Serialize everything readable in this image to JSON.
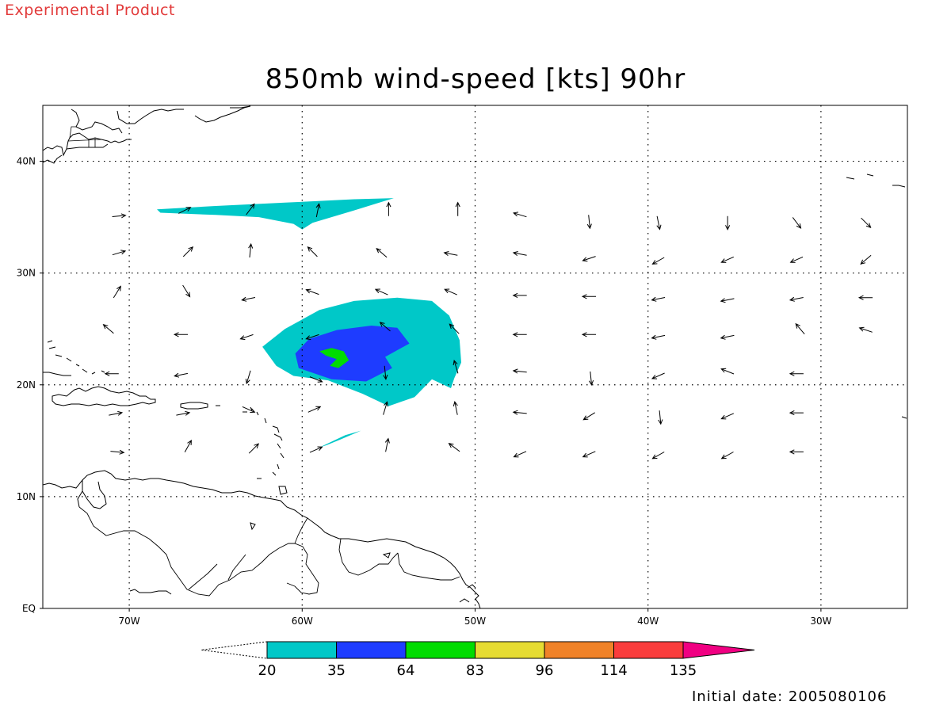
{
  "watermark": "Experimental Product",
  "initial_date": "Initial date: 2005080106",
  "chart_data": {
    "type": "map-contour",
    "title": "850mb wind-speed [kts] 90hr",
    "xlim": [
      -75,
      -25
    ],
    "ylim": [
      0,
      45
    ],
    "x_ticks": [
      {
        "value": -70,
        "label": "70W"
      },
      {
        "value": -60,
        "label": "60W"
      },
      {
        "value": -50,
        "label": "50W"
      },
      {
        "value": -40,
        "label": "40W"
      },
      {
        "value": -30,
        "label": "30W"
      }
    ],
    "y_ticks": [
      {
        "value": 0,
        "label": "EQ"
      },
      {
        "value": 10,
        "label": "10N"
      },
      {
        "value": 20,
        "label": "20N"
      },
      {
        "value": 30,
        "label": "30N"
      },
      {
        "value": 40,
        "label": "40N"
      }
    ],
    "grid": true,
    "colorbar": {
      "levels": [
        "20",
        "35",
        "64",
        "83",
        "96",
        "114",
        "135"
      ],
      "colors": [
        "#00c8c8",
        "#1e3cff",
        "#00dc00",
        "#e6dc32",
        "#f08228",
        "#fa3c3c",
        "#f00082"
      ]
    },
    "wind_vectors": [
      {
        "lon": -70.6,
        "lat": 35.1,
        "u": 1,
        "v": 0.1
      },
      {
        "lon": -66.8,
        "lat": 35.6,
        "u": 1,
        "v": 0.5
      },
      {
        "lon": -63,
        "lat": 35.7,
        "u": 0.6,
        "v": 0.8
      },
      {
        "lon": -59.1,
        "lat": 35.6,
        "u": 0.2,
        "v": 1
      },
      {
        "lon": -55,
        "lat": 35.7,
        "u": 0,
        "v": 1
      },
      {
        "lon": -51,
        "lat": 35.7,
        "u": 0,
        "v": 1
      },
      {
        "lon": -47.4,
        "lat": 35.2,
        "u": -1,
        "v": 0.3
      },
      {
        "lon": -43.4,
        "lat": 34.6,
        "u": 0.1,
        "v": -1
      },
      {
        "lon": -39.4,
        "lat": 34.5,
        "u": 0.2,
        "v": -1
      },
      {
        "lon": -35.4,
        "lat": 34.5,
        "u": 0,
        "v": -1
      },
      {
        "lon": -31.4,
        "lat": 34.5,
        "u": 0.6,
        "v": -0.8
      },
      {
        "lon": -27.4,
        "lat": 34.5,
        "u": 0.7,
        "v": -0.7
      },
      {
        "lon": -70.6,
        "lat": 31.8,
        "u": 1,
        "v": 0.3
      },
      {
        "lon": -66.6,
        "lat": 31.9,
        "u": 0.7,
        "v": 0.7
      },
      {
        "lon": -63,
        "lat": 32,
        "u": 0.1,
        "v": 1
      },
      {
        "lon": -59.4,
        "lat": 31.9,
        "u": -0.7,
        "v": 0.7
      },
      {
        "lon": -55.4,
        "lat": 31.8,
        "u": -0.7,
        "v": 0.6
      },
      {
        "lon": -51.4,
        "lat": 31.7,
        "u": -1,
        "v": 0.2
      },
      {
        "lon": -47.4,
        "lat": 31.7,
        "u": -1,
        "v": 0.2
      },
      {
        "lon": -43.4,
        "lat": 31.3,
        "u": -0.9,
        "v": -0.3
      },
      {
        "lon": -39.4,
        "lat": 31.1,
        "u": -0.9,
        "v": -0.5
      },
      {
        "lon": -35.4,
        "lat": 31.2,
        "u": -0.9,
        "v": -0.4
      },
      {
        "lon": -31.4,
        "lat": 31.2,
        "u": -0.9,
        "v": -0.4
      },
      {
        "lon": -27.4,
        "lat": 31.2,
        "u": -0.7,
        "v": -0.6
      },
      {
        "lon": -70.7,
        "lat": 28.3,
        "u": 0.5,
        "v": 0.8
      },
      {
        "lon": -66.7,
        "lat": 28.4,
        "u": 0.5,
        "v": -0.8
      },
      {
        "lon": -63.1,
        "lat": 27.7,
        "u": -1,
        "v": -0.2
      },
      {
        "lon": -59.4,
        "lat": 28.3,
        "u": -0.8,
        "v": 0.3
      },
      {
        "lon": -55.4,
        "lat": 28.3,
        "u": -0.9,
        "v": 0.4
      },
      {
        "lon": -51.4,
        "lat": 28.3,
        "u": -0.9,
        "v": 0.4
      },
      {
        "lon": -47.4,
        "lat": 28,
        "u": -1,
        "v": 0
      },
      {
        "lon": -43.4,
        "lat": 27.9,
        "u": -1,
        "v": 0
      },
      {
        "lon": -39.4,
        "lat": 27.7,
        "u": -1,
        "v": -0.2
      },
      {
        "lon": -35.4,
        "lat": 27.6,
        "u": -1,
        "v": -0.2
      },
      {
        "lon": -31.4,
        "lat": 27.7,
        "u": -1,
        "v": -0.2
      },
      {
        "lon": -27.4,
        "lat": 27.8,
        "u": -1,
        "v": 0
      },
      {
        "lon": -71.2,
        "lat": 25,
        "u": -0.7,
        "v": 0.6
      },
      {
        "lon": -67,
        "lat": 24.5,
        "u": -1,
        "v": 0
      },
      {
        "lon": -63.2,
        "lat": 24.3,
        "u": -0.9,
        "v": -0.3
      },
      {
        "lon": -59.4,
        "lat": 24.3,
        "u": -0.9,
        "v": -0.3
      },
      {
        "lon": -55.2,
        "lat": 25.2,
        "u": -0.7,
        "v": 0.6
      },
      {
        "lon": -51.2,
        "lat": 25,
        "u": -0.7,
        "v": 0.7
      },
      {
        "lon": -47.4,
        "lat": 24.5,
        "u": -1,
        "v": 0
      },
      {
        "lon": -43.4,
        "lat": 24.5,
        "u": -1,
        "v": 0
      },
      {
        "lon": -39.4,
        "lat": 24.3,
        "u": -1,
        "v": -0.2
      },
      {
        "lon": -35.4,
        "lat": 24.3,
        "u": -1,
        "v": -0.2
      },
      {
        "lon": -31.2,
        "lat": 25,
        "u": -0.6,
        "v": 0.7
      },
      {
        "lon": -27.4,
        "lat": 24.9,
        "u": -0.9,
        "v": 0.3
      },
      {
        "lon": -71,
        "lat": 21,
        "u": -1,
        "v": 0
      },
      {
        "lon": -67,
        "lat": 20.9,
        "u": -1,
        "v": -0.2
      },
      {
        "lon": -63.1,
        "lat": 20.7,
        "u": -0.3,
        "v": -1
      },
      {
        "lon": -59.2,
        "lat": 20.5,
        "u": 1,
        "v": -0.4
      },
      {
        "lon": -55.2,
        "lat": 21.1,
        "u": 0.1,
        "v": -1
      },
      {
        "lon": -51.1,
        "lat": 21.6,
        "u": -0.3,
        "v": 1
      },
      {
        "lon": -47.4,
        "lat": 21.2,
        "u": -1,
        "v": 0.1
      },
      {
        "lon": -43.3,
        "lat": 20.6,
        "u": 0.1,
        "v": -1
      },
      {
        "lon": -39.4,
        "lat": 20.8,
        "u": -0.9,
        "v": -0.4
      },
      {
        "lon": -35.4,
        "lat": 21.2,
        "u": -1,
        "v": 0.4
      },
      {
        "lon": -31.4,
        "lat": 21,
        "u": -1,
        "v": 0
      },
      {
        "lon": -70.8,
        "lat": 17.4,
        "u": 1,
        "v": 0.2
      },
      {
        "lon": -66.9,
        "lat": 17.4,
        "u": 1,
        "v": 0.2
      },
      {
        "lon": -63.1,
        "lat": 17.8,
        "u": 0.9,
        "v": -0.4
      },
      {
        "lon": -59.3,
        "lat": 17.8,
        "u": 0.9,
        "v": 0.4
      },
      {
        "lon": -55.2,
        "lat": 17.9,
        "u": 0.3,
        "v": 1
      },
      {
        "lon": -51.1,
        "lat": 17.9,
        "u": -0.2,
        "v": 1
      },
      {
        "lon": -47.4,
        "lat": 17.5,
        "u": -1,
        "v": 0.1
      },
      {
        "lon": -43.4,
        "lat": 17.2,
        "u": -0.8,
        "v": -0.5
      },
      {
        "lon": -39.3,
        "lat": 17.1,
        "u": 0.1,
        "v": -1
      },
      {
        "lon": -35.4,
        "lat": 17.2,
        "u": -0.9,
        "v": -0.4
      },
      {
        "lon": -31.4,
        "lat": 17.5,
        "u": -1,
        "v": 0
      },
      {
        "lon": -70.7,
        "lat": 14,
        "u": 1,
        "v": -0.1
      },
      {
        "lon": -66.6,
        "lat": 14.5,
        "u": 0.5,
        "v": 0.9
      },
      {
        "lon": -62.8,
        "lat": 14.3,
        "u": 0.7,
        "v": 0.7
      },
      {
        "lon": -59.2,
        "lat": 14.2,
        "u": 0.9,
        "v": 0.4
      },
      {
        "lon": -55.1,
        "lat": 14.6,
        "u": 0.2,
        "v": 1
      },
      {
        "lon": -51.2,
        "lat": 14.4,
        "u": -0.8,
        "v": 0.6
      },
      {
        "lon": -47.4,
        "lat": 13.8,
        "u": -0.9,
        "v": -0.4
      },
      {
        "lon": -43.4,
        "lat": 13.8,
        "u": -0.9,
        "v": -0.4
      },
      {
        "lon": -39.4,
        "lat": 13.7,
        "u": -0.9,
        "v": -0.5
      },
      {
        "lon": -35.4,
        "lat": 13.7,
        "u": -0.9,
        "v": -0.5
      },
      {
        "lon": -31.4,
        "lat": 14,
        "u": -1,
        "v": 0
      }
    ],
    "contours": {
      "band_20_35_main": [
        [
          -62.3,
          23.4
        ],
        [
          -61,
          25
        ],
        [
          -59,
          26.7
        ],
        [
          -57,
          27.5
        ],
        [
          -54.5,
          27.8
        ],
        [
          -52.5,
          27.5
        ],
        [
          -51.5,
          26.2
        ],
        [
          -50.9,
          24
        ],
        [
          -50.8,
          22
        ],
        [
          -51.2,
          20.6
        ],
        [
          -51.4,
          19.7
        ],
        [
          -52.5,
          20.5
        ],
        [
          -53.5,
          18.9
        ],
        [
          -55,
          18.1
        ],
        [
          -56.5,
          19.2
        ],
        [
          -58.5,
          20.4
        ],
        [
          -60.5,
          20.8
        ],
        [
          -61.5,
          21.7
        ]
      ],
      "band_35_64_main": [
        [
          -60.4,
          22.8
        ],
        [
          -59.6,
          24.1
        ],
        [
          -58,
          24.9
        ],
        [
          -56,
          25.3
        ],
        [
          -54.5,
          25.1
        ],
        [
          -53.8,
          23.7
        ],
        [
          -55.2,
          22.5
        ],
        [
          -54.8,
          21.5
        ],
        [
          -56.3,
          20.3
        ],
        [
          -58.3,
          20.5
        ],
        [
          -60.2,
          21.5
        ]
      ],
      "band_64_83": [
        [
          -59,
          23
        ],
        [
          -58.3,
          23.3
        ],
        [
          -57.6,
          23
        ],
        [
          -57.3,
          22.2
        ],
        [
          -57.9,
          21.5
        ],
        [
          -58.4,
          21.7
        ],
        [
          -58,
          22.3
        ],
        [
          -58.6,
          22.6
        ]
      ],
      "band_20_35_north": [
        [
          -68.4,
          35.7
        ],
        [
          -65,
          36
        ],
        [
          -61,
          36.3
        ],
        [
          -57,
          36.6
        ],
        [
          -54.7,
          36.7
        ],
        [
          -57,
          35.6
        ],
        [
          -59.4,
          34.5
        ],
        [
          -60,
          33.9
        ],
        [
          -60.5,
          34.4
        ],
        [
          -62.5,
          35
        ],
        [
          -65,
          35.2
        ],
        [
          -68.2,
          35.4
        ]
      ],
      "band_20_35_south": [
        [
          -59,
          14.4
        ],
        [
          -57.5,
          15.5
        ],
        [
          -56.6,
          15.9
        ],
        [
          -57.8,
          15.1
        ],
        [
          -58.6,
          14.6
        ]
      ]
    }
  }
}
